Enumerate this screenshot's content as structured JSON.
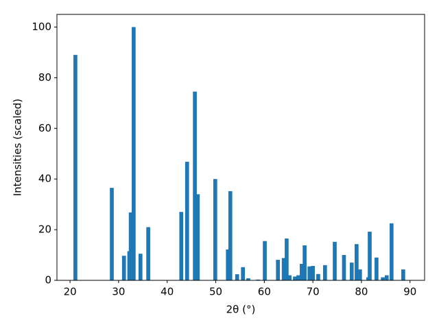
{
  "chart_data": {
    "type": "bar",
    "xlabel": "2θ (°)",
    "ylabel": "Intensities (scaled)",
    "x": [
      21.1,
      28.6,
      31.1,
      32.2,
      32.5,
      33.1,
      34.5,
      36.1,
      42.9,
      44.1,
      45.7,
      46.3,
      49.9,
      52.5,
      53.0,
      54.4,
      55.6,
      56.7,
      58.7,
      60.1,
      62.8,
      64.0,
      64.6,
      65.2,
      66.3,
      67.0,
      67.7,
      68.3,
      69.3,
      70.0,
      71.1,
      72.5,
      74.5,
      76.4,
      78.0,
      79.0,
      79.7,
      81.4,
      81.7,
      83.1,
      84.4,
      85.2,
      86.2,
      88.6
    ],
    "values": [
      89,
      36.5,
      9.7,
      11.5,
      26.8,
      100,
      10.5,
      21,
      27,
      46.8,
      74.5,
      34,
      40,
      12.2,
      35.2,
      2.4,
      5.2,
      0.8,
      0.3,
      15.5,
      8.1,
      8.8,
      16.5,
      2,
      1.5,
      2,
      6.5,
      13.8,
      5.5,
      5.7,
      2.5,
      6,
      15.2,
      10,
      7,
      14.3,
      4.3,
      1.2,
      19.2,
      9,
      1.2,
      2,
      22.5,
      4.3
    ],
    "color": "#1f77b4",
    "xlim": [
      17.3,
      93
    ],
    "ylim": [
      0,
      105
    ],
    "xticks": [
      20,
      30,
      40,
      50,
      60,
      70,
      80,
      90
    ],
    "yticks": [
      0,
      20,
      40,
      60,
      80,
      100
    ]
  }
}
